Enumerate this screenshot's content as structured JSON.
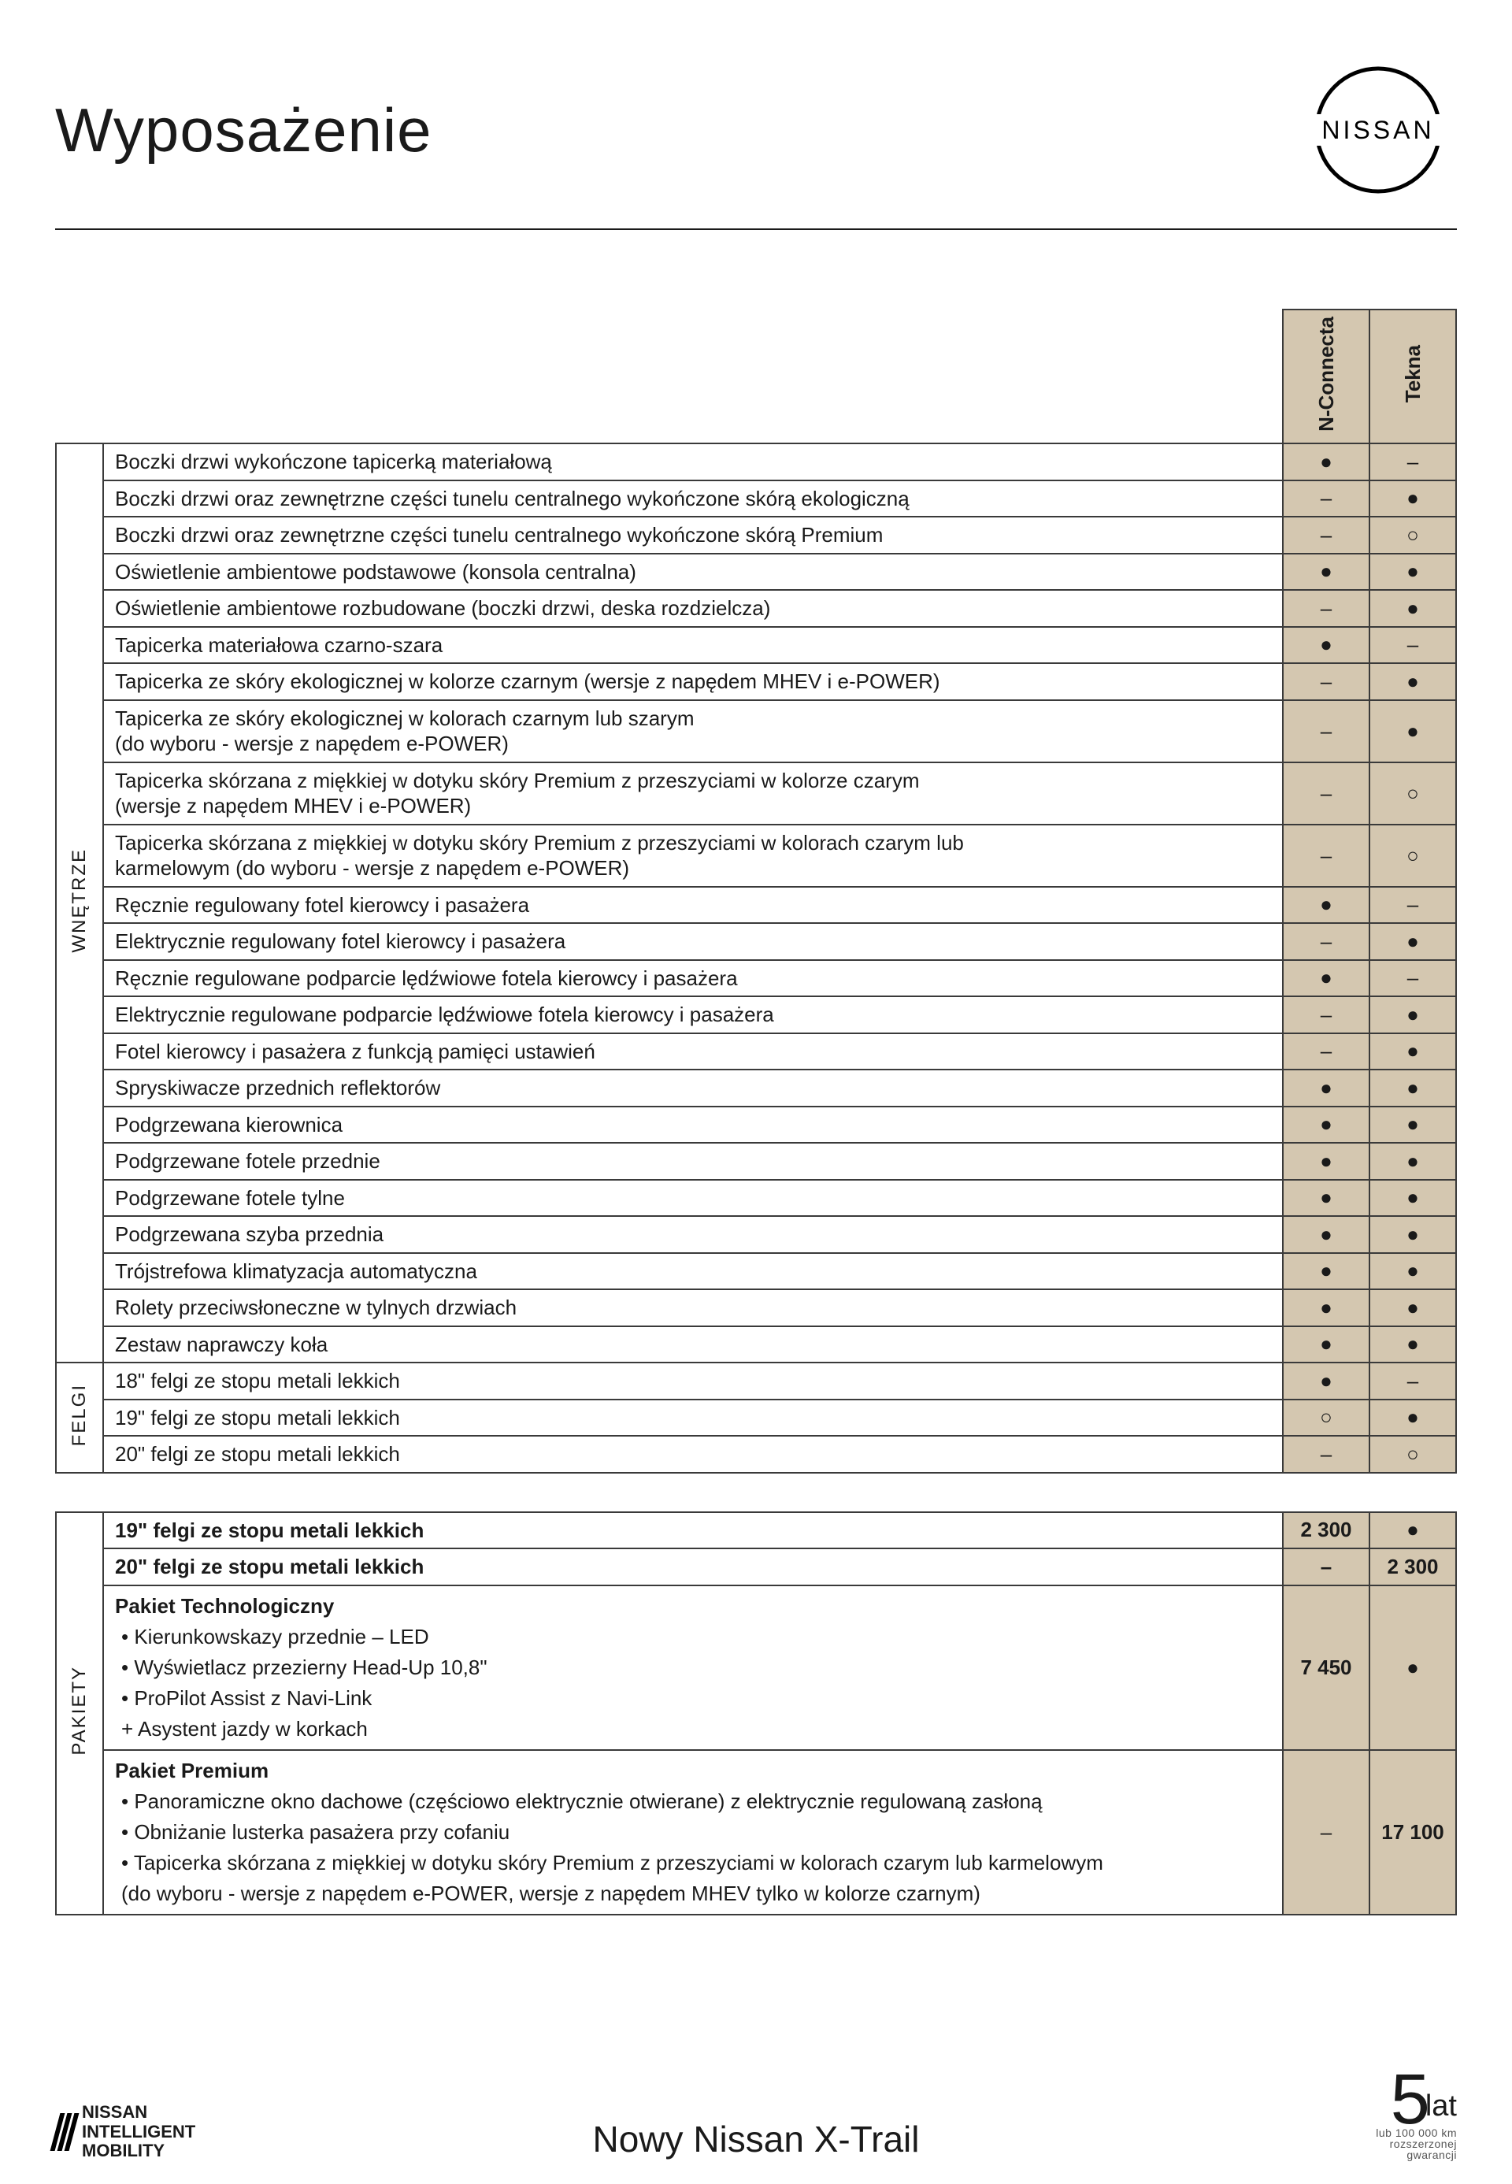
{
  "header": {
    "title": "Wyposażenie",
    "brand": "NISSAN"
  },
  "trims": [
    "N-Connecta",
    "Tekna"
  ],
  "symbols": {
    "std": "●",
    "na": "–",
    "opt": "○"
  },
  "categories": [
    {
      "name": "WNĘTRZE",
      "rows": [
        {
          "desc": "Boczki drzwi wykończone tapicerką materiałową",
          "v": [
            "●",
            "–"
          ]
        },
        {
          "desc": "Boczki drzwi oraz zewnętrzne części tunelu centralnego wykończone skórą ekologiczną",
          "v": [
            "–",
            "●"
          ]
        },
        {
          "desc": "Boczki drzwi oraz zewnętrzne części tunelu centralnego wykończone skórą Premium",
          "v": [
            "–",
            "○"
          ]
        },
        {
          "desc": "Oświetlenie ambientowe podstawowe (konsola centralna)",
          "v": [
            "●",
            "●"
          ]
        },
        {
          "desc": "Oświetlenie ambientowe rozbudowane (boczki drzwi, deska rozdzielcza)",
          "v": [
            "–",
            "●"
          ]
        },
        {
          "desc": "Tapicerka materiałowa czarno-szara",
          "v": [
            "●",
            "–"
          ]
        },
        {
          "desc": "Tapicerka ze skóry ekologicznej w kolorze czarnym (wersje z napędem MHEV i e-POWER)",
          "v": [
            "–",
            "●"
          ]
        },
        {
          "desc": "Tapicerka ze skóry ekologicznej w kolorach czarnym lub szarym\n(do wyboru - wersje z napędem e-POWER)",
          "v": [
            "–",
            "●"
          ]
        },
        {
          "desc": "Tapicerka skórzana z miękkiej w dotyku skóry Premium z przeszyciami w kolorze czarym\n(wersje z napędem MHEV i e-POWER)",
          "v": [
            "–",
            "○"
          ]
        },
        {
          "desc": "Tapicerka skórzana z miękkiej w dotyku skóry Premium z przeszyciami w kolorach czarym lub\nkarmelowym (do wyboru - wersje z napędem e-POWER)",
          "v": [
            "–",
            "○"
          ]
        },
        {
          "desc": "Ręcznie regulowany fotel kierowcy i pasażera",
          "v": [
            "●",
            "–"
          ]
        },
        {
          "desc": "Elektrycznie regulowany fotel kierowcy i pasażera",
          "v": [
            "–",
            "●"
          ]
        },
        {
          "desc": "Ręcznie regulowane podparcie lędźwiowe fotela kierowcy i pasażera",
          "v": [
            "●",
            "–"
          ]
        },
        {
          "desc": "Elektrycznie regulowane podparcie lędźwiowe fotela kierowcy i pasażera",
          "v": [
            "–",
            "●"
          ]
        },
        {
          "desc": "Fotel kierowcy i pasażera z funkcją pamięci ustawień",
          "v": [
            "–",
            "●"
          ]
        },
        {
          "desc": "Spryskiwacze przednich reflektorów",
          "v": [
            "●",
            "●"
          ]
        },
        {
          "desc": "Podgrzewana kierownica",
          "v": [
            "●",
            "●"
          ]
        },
        {
          "desc": "Podgrzewane fotele przednie",
          "v": [
            "●",
            "●"
          ]
        },
        {
          "desc": "Podgrzewane fotele tylne",
          "v": [
            "●",
            "●"
          ]
        },
        {
          "desc": "Podgrzewana szyba przednia",
          "v": [
            "●",
            "●"
          ]
        },
        {
          "desc": "Trójstrefowa klimatyzacja automatyczna",
          "v": [
            "●",
            "●"
          ]
        },
        {
          "desc": "Rolety przeciwsłoneczne w tylnych drzwiach",
          "v": [
            "●",
            "●"
          ]
        },
        {
          "desc": "Zestaw naprawczy koła",
          "v": [
            "●",
            "●"
          ]
        }
      ]
    },
    {
      "name": "FELGI",
      "rows": [
        {
          "desc": "18\" felgi ze stopu metali lekkich",
          "v": [
            "●",
            "–"
          ]
        },
        {
          "desc": "19\" felgi ze stopu metali lekkich",
          "v": [
            "○",
            "●"
          ]
        },
        {
          "desc": "20\" felgi ze stopu metali lekkich",
          "v": [
            "–",
            "○"
          ]
        }
      ]
    }
  ],
  "packages": {
    "name": "PAKIETY",
    "rows": [
      {
        "desc": "19\" felgi ze stopu metali lekkich",
        "v": [
          "2 300",
          "●"
        ],
        "bold": true
      },
      {
        "desc": "20\" felgi ze stopu metali lekkich",
        "v": [
          "–",
          "2 300"
        ],
        "bold": true
      },
      {
        "title": "Pakiet Technologiczny",
        "items": [
          "• Kierunkowskazy przednie – LED",
          "• Wyświetlacz przezierny Head-Up 10,8\"",
          "• ProPilot Assist z Navi-Link",
          "+ Asystent jazdy w korkach"
        ],
        "v": [
          "7 450",
          "●"
        ]
      },
      {
        "title": "Pakiet Premium",
        "items": [
          "• Panoramiczne okno dachowe (częściowo elektrycznie otwierane) z elektrycznie regulowaną zasłoną",
          "• Obniżanie lusterka pasażera przy cofaniu",
          "• Tapicerka skórzana z miękkiej w dotyku skóry Premium z przeszyciami w kolorach czarym lub karmelowym",
          "(do wyboru - wersje z napędem e-POWER, wersje z napędem MHEV tylko w kolorze czarnym)"
        ],
        "v": [
          "–",
          "17 100"
        ]
      }
    ]
  },
  "footer": {
    "nim": [
      "NISSAN",
      "INTELLIGENT",
      "MOBILITY"
    ],
    "model": "Nowy Nissan X-Trail",
    "warranty": {
      "five": "5",
      "lat": "lat",
      "sub1": "lub 100 000 km",
      "sub2": "rozszerzonej",
      "sub3": "gwarancji"
    }
  },
  "style": {
    "bg_beige": "#d4c7b0",
    "text_color": "#1a1a1a",
    "border_color": "#3a3a3a",
    "page_bg": "#ffffff"
  }
}
